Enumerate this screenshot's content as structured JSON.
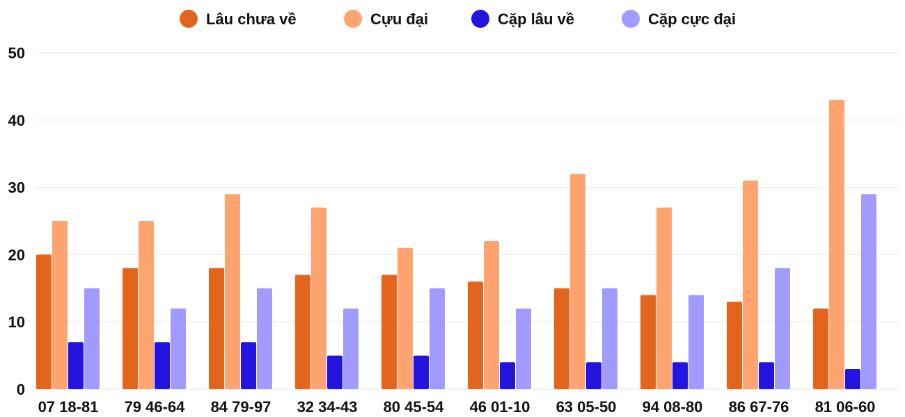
{
  "chart_data": {
    "type": "bar",
    "title": "",
    "xlabel": "",
    "ylabel": "",
    "ylim": [
      0,
      50
    ],
    "yticks": [
      "0",
      "10",
      "20",
      "30",
      "40",
      "50"
    ],
    "grid": true,
    "legend_position": "top-center",
    "categories": [
      "07 18-81",
      "79 46-64",
      "84 79-97",
      "32 34-43",
      "80 45-54",
      "46 01-10",
      "63 05-50",
      "94 08-80",
      "86 67-76",
      "81 06-60"
    ],
    "series": [
      {
        "name": "Lâu chưa về",
        "color": "#E3651D",
        "values": [
          20,
          18,
          18,
          17,
          17,
          16,
          15,
          14,
          13,
          12
        ]
      },
      {
        "name": "Cựu đại",
        "color": "#FFA46E",
        "values": [
          25,
          25,
          29,
          27,
          21,
          22,
          32,
          27,
          31,
          43
        ]
      },
      {
        "name": "Cặp lâu về",
        "color": "#2314E0",
        "values": [
          7,
          7,
          7,
          5,
          5,
          4,
          4,
          4,
          4,
          3
        ]
      },
      {
        "name": "Cặp cực đại",
        "color": "#A19BFF",
        "values": [
          15,
          12,
          15,
          12,
          15,
          12,
          15,
          14,
          18,
          29
        ]
      }
    ]
  }
}
